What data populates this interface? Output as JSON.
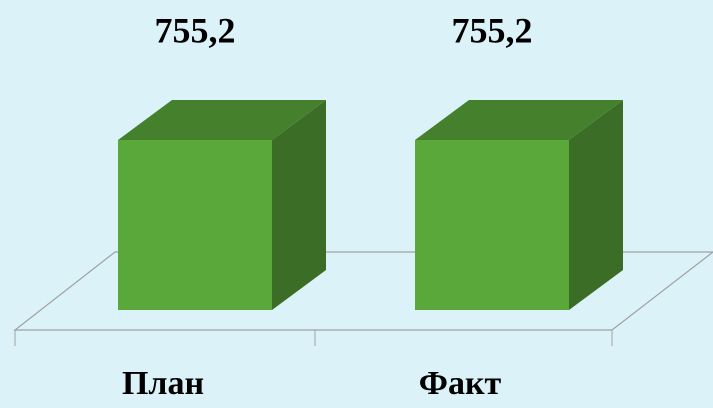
{
  "chart_data": {
    "type": "bar3d",
    "categories": [
      "План",
      "Факт"
    ],
    "values": [
      755.2,
      755.2
    ],
    "value_labels": [
      "755,2",
      "755,2"
    ],
    "color": "#5aa83a"
  }
}
